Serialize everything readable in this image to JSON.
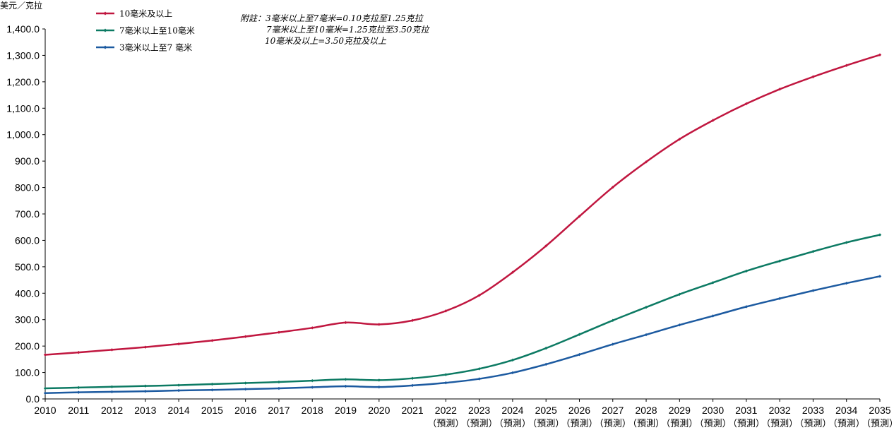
{
  "chart_data": {
    "type": "line",
    "title": "",
    "ylabel": "美元／克拉",
    "xlabel": "",
    "ylim": [
      0,
      1400
    ],
    "y_ticks": [
      0,
      100,
      200,
      300,
      400,
      500,
      600,
      700,
      800,
      900,
      1000,
      1100,
      1200,
      1300,
      1400
    ],
    "y_tick_labels": [
      "0.0",
      "100.0",
      "200.0",
      "300.0",
      "400.0",
      "500.0",
      "600.0",
      "700.0",
      "800.0",
      "900.0",
      "1,000.0",
      "1,100.0",
      "1,200.0",
      "1,300.0",
      "1,400.0"
    ],
    "categories": [
      "2010",
      "2011",
      "2012",
      "2013",
      "2014",
      "2015",
      "2016",
      "2017",
      "2018",
      "2019",
      "2020",
      "2021",
      "2022",
      "2023",
      "2024",
      "2025",
      "2026",
      "2027",
      "2028",
      "2029",
      "2030",
      "2031",
      "2032",
      "2033",
      "2034",
      "2035"
    ],
    "forecast_label": "（預測）",
    "forecast_start_index": 12,
    "grid": false,
    "legend_position": "top-left",
    "series": [
      {
        "name": "10毫米及以上",
        "color": "#c0163f",
        "values": [
          167,
          176,
          186,
          196,
          208,
          221,
          236,
          252,
          269,
          289,
          282,
          297,
          333,
          392,
          479,
          579,
          691,
          801,
          897,
          983,
          1054,
          1117,
          1172,
          1219,
          1262,
          1302
        ]
      },
      {
        "name": "7毫米以上至10毫米",
        "color": "#0c7a63",
        "values": [
          40,
          43,
          46,
          49,
          52,
          56,
          60,
          64,
          69,
          74,
          71,
          78,
          92,
          114,
          147,
          192,
          244,
          297,
          347,
          396,
          440,
          484,
          522,
          558,
          592,
          621
        ]
      },
      {
        "name": "3毫米以上至7 毫米",
        "color": "#1c5aa0",
        "values": [
          22,
          25,
          27,
          29,
          32,
          34,
          37,
          40,
          44,
          48,
          45,
          51,
          61,
          76,
          99,
          131,
          168,
          207,
          243,
          280,
          314,
          349,
          380,
          410,
          438,
          464
        ]
      }
    ],
    "annotation_lines": [
      "附註：3毫米以上至7毫米=0.10克拉至1.25克拉",
      "7毫米以上至10毫米=1.25克拉至3.50克拉",
      "10毫米及以上=3.50克拉及以上"
    ]
  }
}
